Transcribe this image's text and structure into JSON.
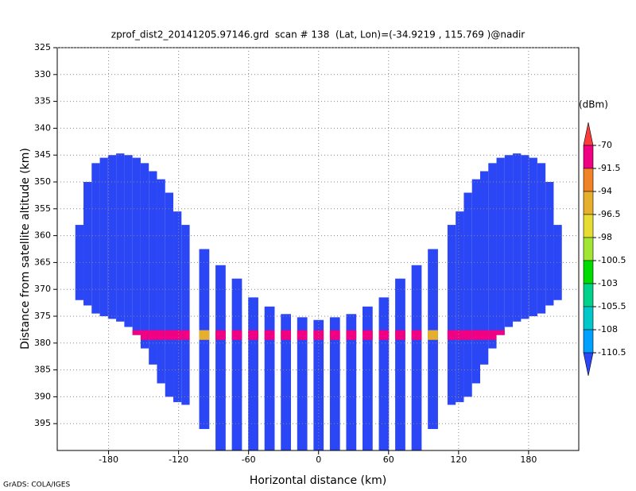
{
  "chart_data": {
    "type": "profile",
    "title": "zprof_dist2_20141205.97146.grd  scan # 138  (Lat, Lon)=(-34.9219 , 115.769 )@nadir",
    "x_label": "Horizontal distance (km)",
    "y_label": "Distance from satellite altitude (km)",
    "footer": "GrADS: COLA/IGES",
    "colorbar_unit": "(dBm)",
    "levels": [
      -70,
      -91.5,
      -94,
      -96.5,
      -98,
      -100.5,
      -103,
      -105.5,
      -108,
      -110.5
    ],
    "level_colors": [
      "#fa3c3c",
      "#f00082",
      "#f08228",
      "#e6af2d",
      "#e6dc32",
      "#a0e632",
      "#00dc00",
      "#00d28c",
      "#00c8c8",
      "#00a0ff",
      "#2a46f5"
    ],
    "xlim": [
      -224,
      223
    ],
    "ylim": [
      325,
      400
    ],
    "xticks": [
      -180,
      -120,
      -60,
      0,
      60,
      120,
      180
    ],
    "yticks": [
      325,
      330,
      335,
      340,
      345,
      350,
      355,
      360,
      365,
      370,
      375,
      380,
      385,
      390,
      395
    ],
    "grid": true,
    "base_value": -112,
    "band_top": 377.6,
    "band_bottom": 379.4,
    "columns": {
      "x": [
        -205,
        -198,
        -191,
        -184,
        -177,
        -170,
        -163,
        -156,
        -149,
        -142,
        -135,
        -128,
        -121,
        -114,
        -98,
        -84,
        -70,
        -56,
        -42,
        -28,
        -14,
        0,
        14,
        28,
        42,
        56,
        70,
        84,
        98,
        114,
        121,
        128,
        135,
        142,
        149,
        156,
        163,
        170,
        177,
        184,
        191,
        198,
        205
      ],
      "top": [
        358,
        350,
        346.5,
        345.5,
        345,
        344.7,
        345,
        345.5,
        346.5,
        348,
        349.5,
        352,
        355.5,
        358,
        362.5,
        365.5,
        368,
        371.5,
        373.2,
        374.6,
        375.2,
        375.7,
        375.2,
        374.6,
        373.2,
        371.5,
        368,
        365.5,
        362.5,
        358,
        355.5,
        352,
        349.5,
        348,
        346.5,
        345.5,
        345,
        344.7,
        345,
        345.5,
        346.5,
        350,
        358
      ],
      "bottom": [
        372,
        373,
        374.5,
        375,
        375.5,
        376,
        377,
        378.5,
        381,
        384,
        387.5,
        390,
        391,
        391.5,
        396,
        400,
        400,
        400,
        400,
        400,
        400,
        400,
        400,
        400,
        400,
        400,
        400,
        400,
        396,
        391.5,
        391,
        390,
        387.5,
        384,
        381,
        378.5,
        377,
        376,
        375.5,
        375,
        374.5,
        373,
        372
      ],
      "band": [
        null,
        null,
        null,
        null,
        null,
        null,
        -85,
        -85,
        -85,
        -85,
        -85,
        -85,
        -85,
        -85,
        -95,
        -85,
        -85,
        -85,
        -85,
        -85,
        -85,
        -85,
        -85,
        -85,
        -85,
        -85,
        -85,
        -85,
        -95,
        -85,
        -85,
        -85,
        -85,
        -85,
        -85,
        -85,
        -85,
        null,
        null,
        null,
        null,
        null,
        null
      ]
    }
  }
}
